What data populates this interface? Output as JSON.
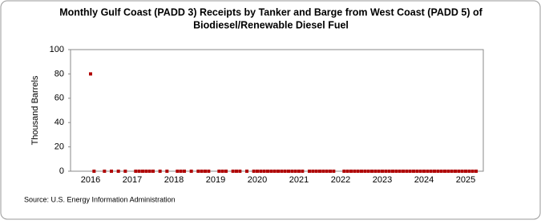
{
  "chart_data": {
    "type": "scatter",
    "title": [
      "Monthly Gulf Coast (PADD 3) Receipts by Tanker and Barge from West Coast (PADD 5) of",
      "Biodiesel/Renewable Diesel Fuel"
    ],
    "y_label": "Thousand Barrels",
    "source": "Source: U.S. Energy Information Administration",
    "color": "#b00000",
    "ylim": [
      0,
      100
    ],
    "yticks": [
      0,
      20,
      40,
      60,
      80,
      100
    ],
    "categories": [
      "2016",
      null,
      null,
      null,
      null,
      null,
      null,
      null,
      null,
      null,
      null,
      null,
      "2017",
      null,
      null,
      null,
      null,
      null,
      null,
      null,
      null,
      null,
      null,
      null,
      "2018",
      null,
      null,
      null,
      null,
      null,
      null,
      null,
      null,
      null,
      null,
      null,
      "2019",
      null,
      null,
      null,
      null,
      null,
      null,
      null,
      null,
      null,
      null,
      null,
      "2020",
      null,
      null,
      null,
      null,
      null,
      null,
      null,
      null,
      null,
      null,
      null,
      "2021",
      null,
      null,
      null,
      null,
      null,
      null,
      null,
      null,
      null,
      null,
      null,
      "2022",
      null,
      null,
      null,
      null,
      null,
      null,
      null,
      null,
      null,
      null,
      null,
      "2023",
      null,
      null,
      null,
      null,
      null,
      null,
      null,
      null,
      null,
      null,
      null,
      "2024",
      null,
      null,
      null,
      null,
      null,
      null,
      null,
      null,
      null,
      null,
      null,
      "2025",
      null,
      null,
      null
    ],
    "values": [
      80,
      0,
      null,
      null,
      0,
      null,
      0,
      null,
      0,
      null,
      0,
      null,
      null,
      0,
      0,
      0,
      0,
      0,
      0,
      null,
      0,
      null,
      0,
      null,
      null,
      0,
      0,
      0,
      null,
      0,
      null,
      0,
      0,
      0,
      0,
      null,
      null,
      0,
      0,
      0,
      null,
      0,
      0,
      0,
      null,
      0,
      null,
      0,
      0,
      0,
      0,
      0,
      0,
      0,
      0,
      0,
      0,
      0,
      0,
      0,
      0,
      0,
      null,
      0,
      0,
      0,
      0,
      0,
      0,
      0,
      0,
      null,
      null,
      0,
      0,
      0,
      0,
      0,
      0,
      0,
      0,
      0,
      0,
      0,
      0,
      0,
      0,
      0,
      0,
      0,
      0,
      0,
      0,
      0,
      0,
      0,
      0,
      0,
      0,
      0,
      0,
      0,
      0,
      0,
      0,
      0,
      0,
      0,
      0,
      0,
      0,
      0
    ]
  }
}
